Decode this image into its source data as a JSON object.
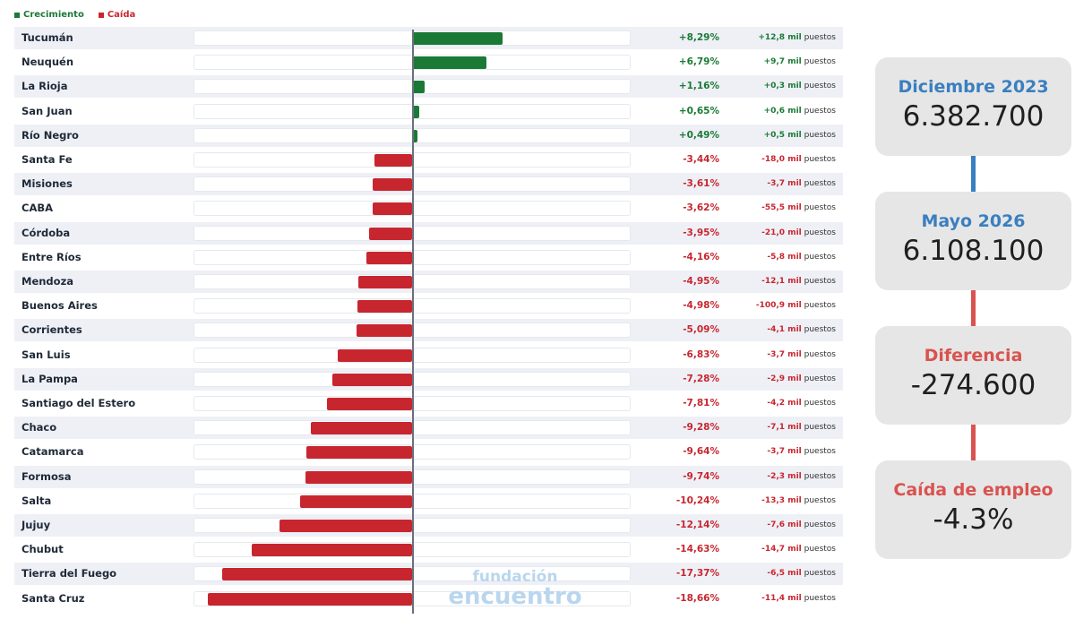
{
  "legend": {
    "growth_label": "Crecimiento",
    "decline_label": "Caída"
  },
  "colors": {
    "growth": "#1a7a35",
    "decline": "#c8262f",
    "accent_blue": "#3a7fc0",
    "accent_red": "#d9534f"
  },
  "chart_data": {
    "type": "bar",
    "orientation": "horizontal",
    "xlim": [
      -18.66,
      18.66
    ],
    "categories": [
      "Tucumán",
      "Neuquén",
      "La Rioja",
      "San Juan",
      "Río Negro",
      "Santa Fe",
      "Misiones",
      "CABA",
      "Córdoba",
      "Entre Ríos",
      "Mendoza",
      "Buenos Aires",
      "Corrientes",
      "San Luis",
      "La Pampa",
      "Santiago del Estero",
      "Chaco",
      "Catamarca",
      "Formosa",
      "Salta",
      "Jujuy",
      "Chubut",
      "Tierra del Fuego",
      "Santa Cruz"
    ],
    "values": [
      8.29,
      6.79,
      1.16,
      0.65,
      0.49,
      -3.44,
      -3.61,
      -3.62,
      -3.95,
      -4.16,
      -4.95,
      -4.98,
      -5.09,
      -6.83,
      -7.28,
      -7.81,
      -9.28,
      -9.64,
      -9.74,
      -10.24,
      -12.14,
      -14.63,
      -17.37,
      -18.66
    ],
    "pct_labels": [
      "+8,29%",
      "+6,79%",
      "+1,16%",
      "+0,65%",
      "+0,49%",
      "-3,44%",
      "-3,61%",
      "-3,62%",
      "-3,95%",
      "-4,16%",
      "-4,95%",
      "-4,98%",
      "-5,09%",
      "-6,83%",
      "-7,28%",
      "-7,81%",
      "-9,28%",
      "-9,64%",
      "-9,74%",
      "-10,24%",
      "-12,14%",
      "-14,63%",
      "-17,37%",
      "-18,66%"
    ],
    "jobs_labels": [
      "+12,8 mil",
      "+9,7 mil",
      "+0,3 mil",
      "+0,6 mil",
      "+0,5 mil",
      "-18,0 mil",
      "-3,7 mil",
      "-55,5 mil",
      "-21,0 mil",
      "-5,8 mil",
      "-12,1 mil",
      "-100,9 mil",
      "-4,1 mil",
      "-3,7 mil",
      "-2,9 mil",
      "-4,2 mil",
      "-7,1 mil",
      "-3,7 mil",
      "-2,3 mil",
      "-13,3 mil",
      "-7,6 mil",
      "-14,7 mil",
      "-6,5 mil",
      "-11,4 mil"
    ],
    "jobs_unit": "puestos"
  },
  "summary": {
    "cards": [
      {
        "label": "Diciembre 2023",
        "value": "6.382.700",
        "color": "#3a7fc0"
      },
      {
        "label": "Mayo 2026",
        "value": "6.108.100",
        "color": "#3a7fc0"
      },
      {
        "label": "Diferencia",
        "value": "-274.600",
        "color": "#d9534f"
      },
      {
        "label": "Caída de empleo",
        "value": "-4.3%",
        "color": "#d9534f"
      }
    ]
  },
  "watermark": {
    "line1": "fundación",
    "line2": "encuentro"
  }
}
